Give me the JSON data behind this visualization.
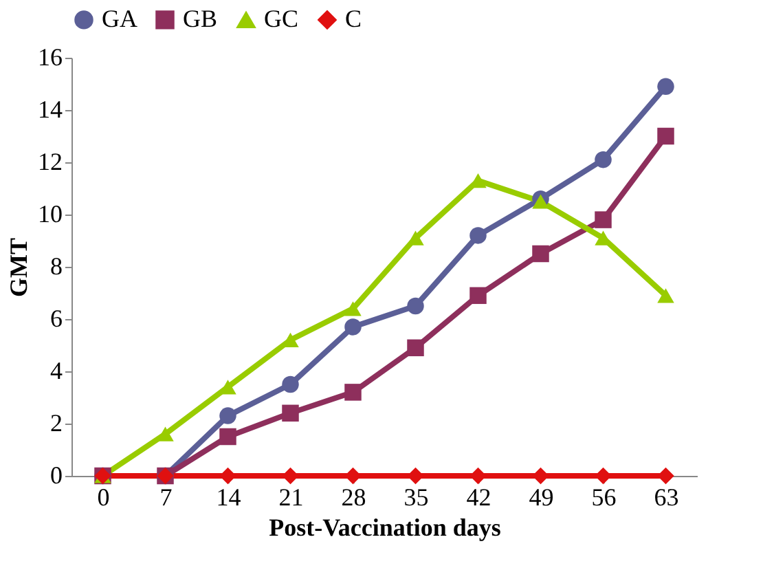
{
  "chart_data": {
    "type": "line",
    "xlabel": "Post-Vaccination days",
    "ylabel": "GMT",
    "categories": [
      "0",
      "7",
      "14",
      "21",
      "28",
      "35",
      "42",
      "49",
      "56",
      "63"
    ],
    "series": [
      {
        "name": "GA",
        "color": "#5b5f97",
        "marker": "circle",
        "values": [
          0,
          0,
          2.3,
          3.5,
          5.7,
          6.5,
          9.2,
          10.6,
          12.1,
          14.9
        ]
      },
      {
        "name": "GB",
        "color": "#8e2f5c",
        "marker": "square",
        "values": [
          0,
          0,
          1.5,
          2.4,
          3.2,
          4.9,
          6.9,
          8.5,
          9.8,
          13.0
        ]
      },
      {
        "name": "GC",
        "color": "#99cc00",
        "marker": "triangle",
        "values": [
          0,
          1.6,
          3.4,
          5.2,
          6.4,
          9.1,
          11.3,
          10.5,
          9.1,
          6.9
        ]
      },
      {
        "name": "C",
        "color": "#e01010",
        "marker": "diamond",
        "values": [
          0,
          0,
          0,
          0,
          0,
          0,
          0,
          0,
          0,
          0
        ]
      }
    ],
    "ylim": [
      0,
      16
    ],
    "yticks": [
      0,
      2,
      4,
      6,
      8,
      10,
      12,
      14,
      16
    ],
    "grid": false,
    "legend": "top"
  }
}
